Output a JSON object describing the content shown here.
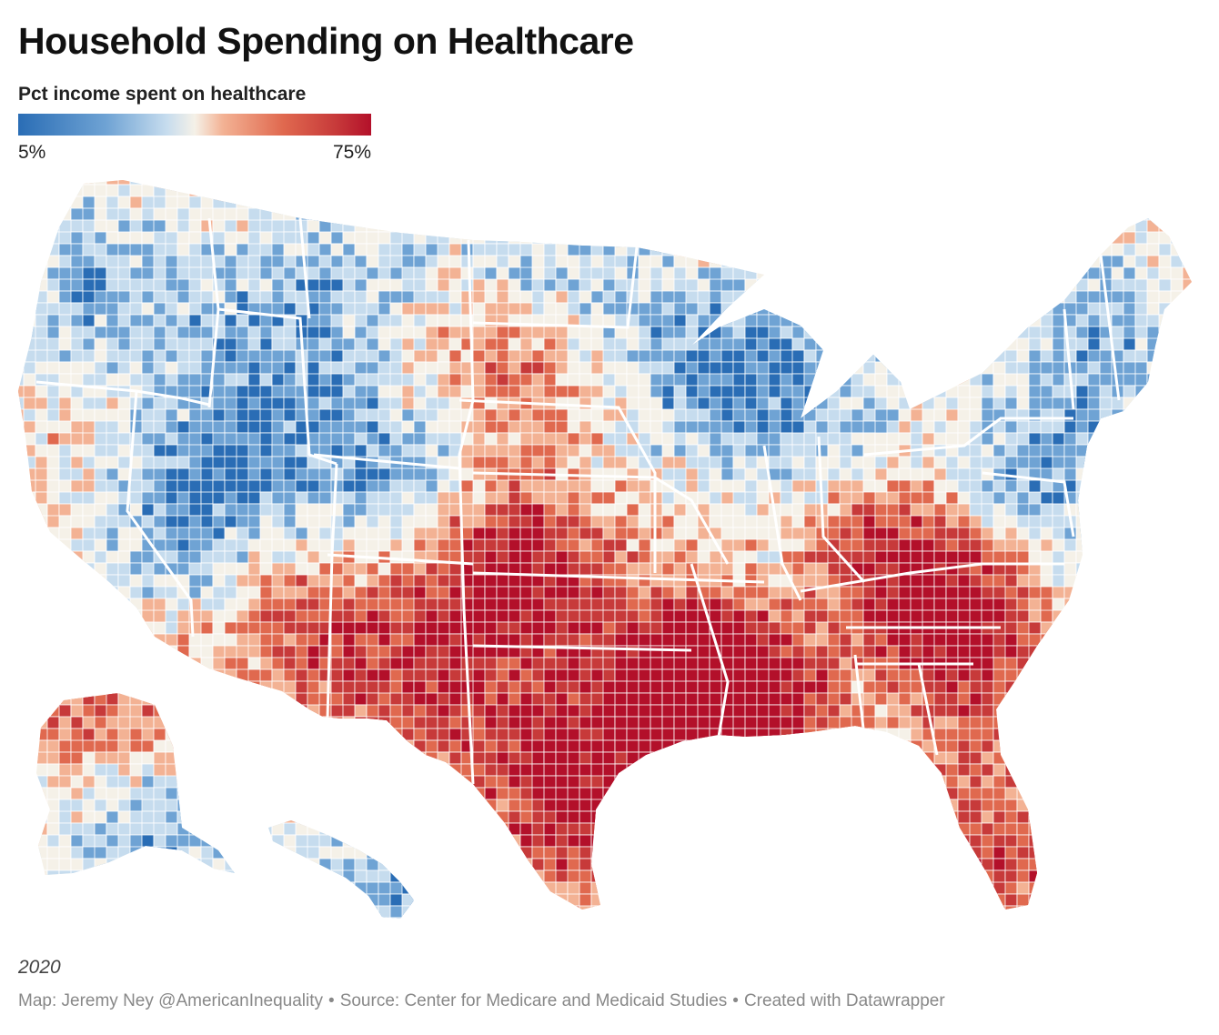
{
  "header": {
    "title": "Household Spending on Healthcare"
  },
  "legend": {
    "title": "Pct income spent on healthcare",
    "min_label": "5%",
    "max_label": "75%",
    "min_value": 5,
    "max_value": 75,
    "colors": [
      "#2a6db5",
      "#6fa3d4",
      "#c6dcee",
      "#f5f1e8",
      "#f3b294",
      "#e0694f",
      "#c73a3a",
      "#b3102a"
    ]
  },
  "map": {
    "regions": [
      "Alaska",
      "Hawaii",
      "Contiguous United States"
    ]
  },
  "footer": {
    "note": "2020",
    "map_credit": "Map: Jeremy Ney @AmericanInequality",
    "source": "Source: Center for Medicare and Medicaid Studies",
    "tool": "Created with Datawrapper",
    "separator": "•"
  }
}
